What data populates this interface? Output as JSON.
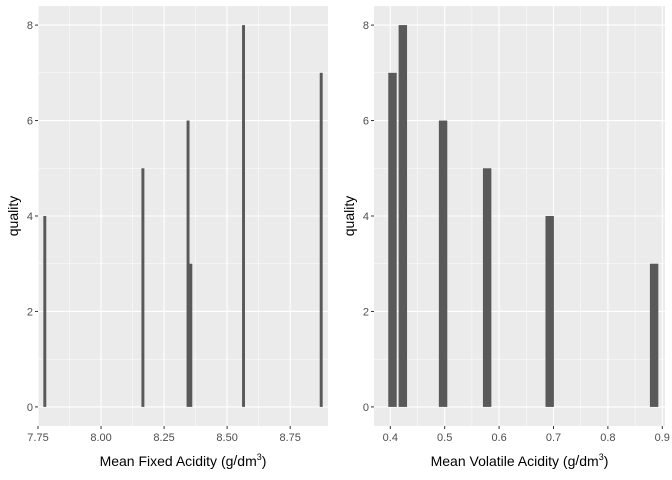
{
  "colors": {
    "panel_background": "#EBEBEB",
    "grid_major": "#FFFFFF",
    "bar_fill": "#595959",
    "tick_text": "#4D4D4D",
    "axis_title": "#000000"
  },
  "chart_data": [
    {
      "type": "bar",
      "xlabel": "Mean Fixed Acidity (g/dm3)",
      "xlabel_parts": {
        "main": "Mean Fixed Acidity (g",
        "sep": "/",
        "unit": "dm",
        "sup": "3",
        "close": ")"
      },
      "ylabel": "quality",
      "xlim": [
        7.75,
        8.9
      ],
      "ylim": [
        0,
        8
      ],
      "xticks": [
        7.75,
        8.0,
        8.25,
        8.5,
        8.75
      ],
      "xtick_labels": [
        "7.75",
        "8.00",
        "8.25",
        "8.50",
        "8.75"
      ],
      "yticks": [
        0,
        2,
        4,
        6,
        8
      ],
      "ytick_labels": [
        "0",
        "2",
        "4",
        "6",
        "8"
      ],
      "bar_width": 0.0117,
      "grid": true,
      "x": [
        7.777,
        8.166,
        8.345,
        8.356,
        8.565,
        8.873
      ],
      "values": [
        4,
        5,
        6,
        3,
        8,
        7
      ]
    },
    {
      "type": "bar",
      "xlabel": "Mean Volatile Acidity (g/dm3)",
      "xlabel_parts": {
        "main": "Mean Volatile Acidity (g",
        "sep": "/",
        "unit": "dm",
        "sup": "3",
        "close": ")"
      },
      "ylabel": "quality",
      "xlim": [
        0.37,
        0.905
      ],
      "ylim": [
        0,
        8
      ],
      "xticks": [
        0.4,
        0.5,
        0.6,
        0.7,
        0.8,
        0.9
      ],
      "xtick_labels": [
        "0.4",
        "0.5",
        "0.6",
        "0.7",
        "0.8",
        "0.9"
      ],
      "yticks": [
        0,
        2,
        4,
        6,
        8
      ],
      "ytick_labels": [
        "0",
        "2",
        "4",
        "6",
        "8"
      ],
      "bar_width": 0.0155,
      "grid": true,
      "x": [
        0.404,
        0.423,
        0.497,
        0.578,
        0.693,
        0.885
      ],
      "values": [
        7,
        8,
        6,
        5,
        4,
        3
      ]
    }
  ]
}
